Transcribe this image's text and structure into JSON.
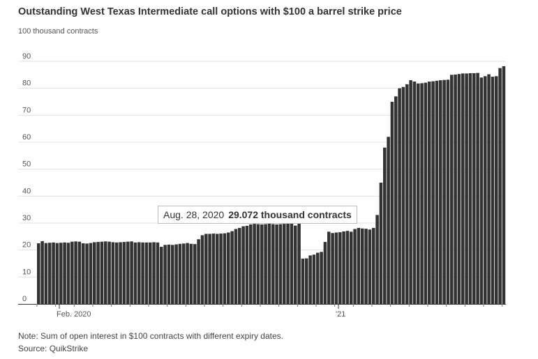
{
  "title": "Outstanding West Texas Intermediate call options with $100 a barrel strike price",
  "unit_label": "100 thousand contracts",
  "note": "Note: Sum of open interest in $100 contracts with different expiry dates.",
  "source": "Source: QuikStrike",
  "tooltip": {
    "date": "Aug. 28, 2020",
    "value": "29.072 thousand contracts"
  },
  "chart_data": {
    "type": "bar",
    "bar_color": "#333333",
    "grid": true,
    "ylim": [
      0,
      90
    ],
    "y_ticks": [
      0,
      10,
      20,
      30,
      40,
      50,
      60,
      70,
      80,
      90
    ],
    "x_labels": [
      {
        "text": "Feb. 2020",
        "index": 6
      },
      {
        "text": "'21",
        "index": 81
      }
    ],
    "values": [
      22.5,
      23.3,
      22.6,
      22.7,
      22.8,
      22.6,
      22.7,
      22.8,
      22.7,
      23.1,
      23.2,
      23.1,
      22.5,
      22.4,
      22.6,
      22.9,
      23.0,
      23.1,
      23.2,
      23.1,
      22.9,
      22.8,
      22.9,
      23.0,
      23.1,
      23.2,
      22.8,
      22.9,
      22.8,
      22.8,
      22.8,
      22.9,
      22.8,
      21.2,
      21.9,
      22.0,
      21.9,
      22.1,
      22.3,
      22.4,
      22.6,
      22.3,
      22.2,
      24.0,
      25.5,
      26.0,
      26.0,
      26.1,
      26.0,
      26.1,
      26.2,
      26.5,
      27.0,
      27.8,
      28.2,
      28.8,
      29.0,
      29.5,
      29.7,
      29.6,
      29.5,
      29.6,
      29.8,
      29.6,
      29.5,
      29.6,
      29.7,
      29.8,
      29.9,
      29.072,
      30.0,
      16.8,
      16.9,
      18.0,
      18.3,
      19.0,
      19.3,
      23.0,
      26.8,
      26.3,
      26.5,
      26.6,
      26.9,
      27.1,
      26.8,
      27.8,
      28.2,
      28.0,
      27.9,
      27.6,
      28.2,
      33.0,
      45.0,
      58.0,
      62.0,
      75.0,
      77.0,
      80.0,
      80.5,
      81.5,
      83.0,
      82.5,
      81.8,
      81.9,
      82.1,
      82.5,
      82.6,
      82.8,
      83.0,
      83.1,
      83.2,
      85.0,
      85.1,
      85.3,
      85.5,
      85.5,
      85.6,
      85.6,
      85.7,
      84.0,
      84.5,
      85.2,
      84.3,
      84.5,
      87.5,
      88.2
    ]
  }
}
